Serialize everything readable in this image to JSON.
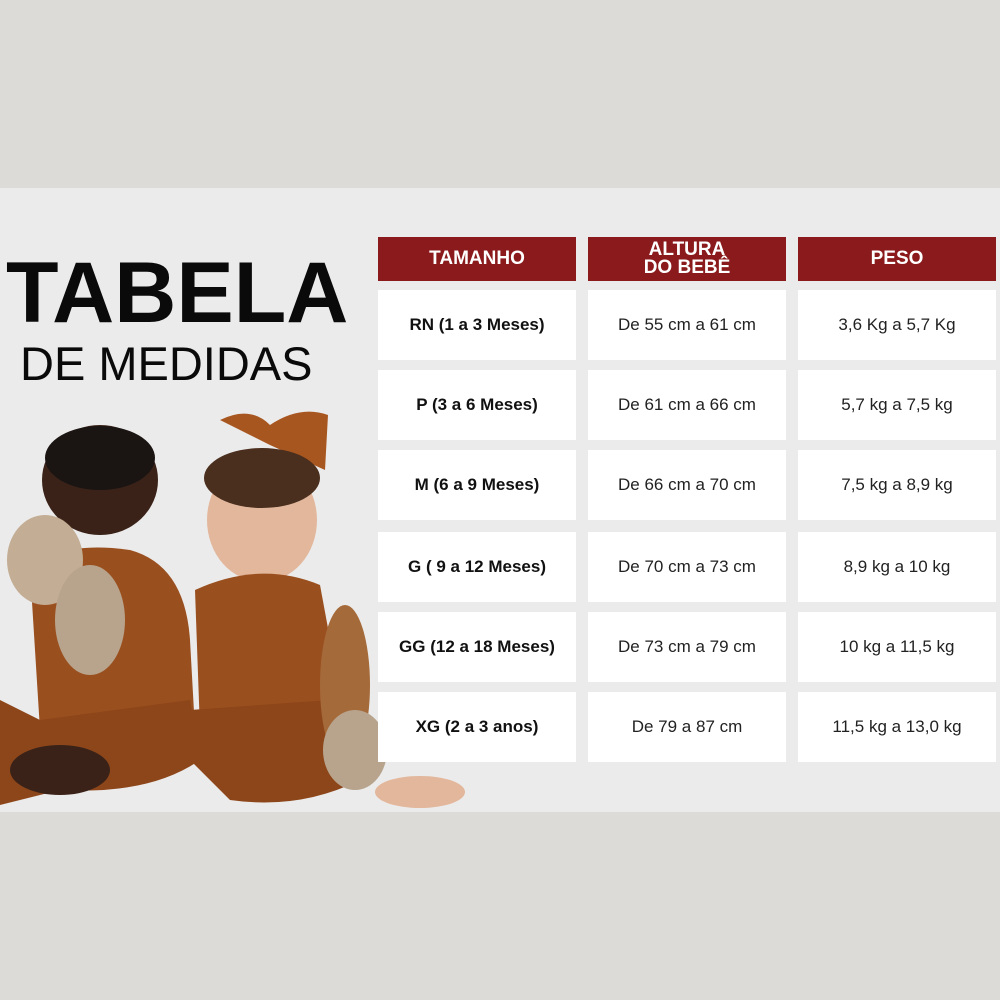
{
  "title": {
    "line1": "TABELA",
    "line2": "DE MEDIDAS"
  },
  "colors": {
    "header_bg": "#8a1a1b",
    "band_bg": "#ebebeb",
    "outer_bg": "#dcdbd7"
  },
  "table": {
    "headers": [
      "TAMANHO",
      "ALTURA DO BEBÊ",
      "PESO"
    ],
    "rows": [
      [
        "RN (1 a 3 Meses)",
        "De 55 cm a 61 cm",
        "3,6 Kg a 5,7 Kg"
      ],
      [
        "P (3 a 6 Meses)",
        "De 61 cm a 66 cm",
        "5,7 kg a 7,5 kg"
      ],
      [
        "M (6 a 9 Meses)",
        "De 66 cm a 70 cm",
        "7,5 kg a 8,9 kg"
      ],
      [
        "G ( 9 a 12 Meses)",
        "De 70 cm a 73 cm",
        "8,9 kg a 10 kg"
      ],
      [
        "GG (12 a 18 Meses)",
        "De 73 cm a 79 cm",
        "10 kg a 11,5 kg"
      ],
      [
        "XG (2 a 3 anos)",
        "De 79 a 87 cm",
        "11,5 kg a 13,0 kg"
      ]
    ]
  }
}
